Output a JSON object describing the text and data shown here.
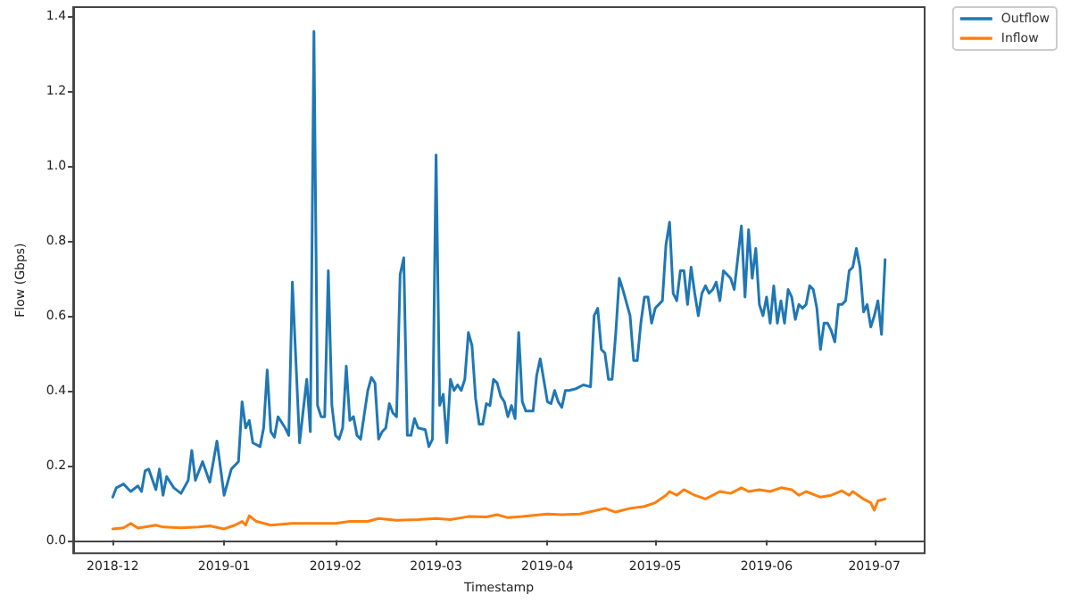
{
  "chart_data": {
    "type": "line",
    "xlabel": "Timestamp",
    "ylabel": "Flow (Gbps)",
    "legend": "top right",
    "line_style": "solid",
    "xlim": [
      "2018-11-20",
      "2019-07-15"
    ],
    "xticks": [
      {
        "value": "2018-12",
        "label": "2018-12"
      },
      {
        "value": "2019-01",
        "label": "2019-01"
      },
      {
        "value": "2019-02",
        "label": "2019-02"
      },
      {
        "value": "2019-03",
        "label": "2019-03"
      },
      {
        "value": "2019-04",
        "label": "2019-04"
      },
      {
        "value": "2019-05",
        "label": "2019-05"
      },
      {
        "value": "2019-06",
        "label": "2019-06"
      },
      {
        "value": "2019-07",
        "label": "2019-07"
      }
    ],
    "ylim": [
      -0.035,
      1.425
    ],
    "yticks": [
      {
        "value": 0,
        "label": "0.0"
      },
      {
        "value": 0.2,
        "label": "0.2"
      },
      {
        "value": 0.4,
        "label": "0.4"
      },
      {
        "value": 0.6,
        "label": "0.6"
      },
      {
        "value": 0.8,
        "label": "0.8"
      },
      {
        "value": 1,
        "label": "1.0"
      },
      {
        "value": 1.2,
        "label": "1.2"
      },
      {
        "value": 1.4,
        "label": "1.4"
      }
    ],
    "series": [
      {
        "name": "Outflow",
        "color": "#1f77b4",
        "x": [
          "2018-12-01",
          "2018-12-02",
          "2018-12-04",
          "2018-12-06",
          "2018-12-08",
          "2018-12-09",
          "2018-12-10",
          "2018-12-11",
          "2018-12-13",
          "2018-12-14",
          "2018-12-15",
          "2018-12-16",
          "2018-12-18",
          "2018-12-20",
          "2018-12-22",
          "2018-12-23",
          "2018-12-24",
          "2018-12-26",
          "2018-12-28",
          "2018-12-30",
          "2019-01-01",
          "2019-01-03",
          "2019-01-05",
          "2019-01-06",
          "2019-01-07",
          "2019-01-08",
          "2019-01-09",
          "2019-01-11",
          "2019-01-12",
          "2019-01-13",
          "2019-01-14",
          "2019-01-15",
          "2019-01-16",
          "2019-01-18",
          "2019-01-19",
          "2019-01-20",
          "2019-01-22",
          "2019-01-24",
          "2019-01-25",
          "2019-01-26",
          "2019-01-27",
          "2019-01-28",
          "2019-01-29",
          "2019-01-30",
          "2019-01-31",
          "2019-02-01",
          "2019-02-02",
          "2019-02-03",
          "2019-02-04",
          "2019-02-05",
          "2019-02-06",
          "2019-02-07",
          "2019-02-08",
          "2019-02-10",
          "2019-02-11",
          "2019-02-12",
          "2019-02-13",
          "2019-02-14",
          "2019-02-15",
          "2019-02-16",
          "2019-02-17",
          "2019-02-18",
          "2019-02-19",
          "2019-02-20",
          "2019-02-21",
          "2019-02-22",
          "2019-02-23",
          "2019-02-24",
          "2019-02-26",
          "2019-02-27",
          "2019-02-28",
          "2019-03-01",
          "2019-03-02",
          "2019-03-03",
          "2019-03-04",
          "2019-03-05",
          "2019-03-06",
          "2019-03-07",
          "2019-03-08",
          "2019-03-09",
          "2019-03-10",
          "2019-03-11",
          "2019-03-12",
          "2019-03-13",
          "2019-03-14",
          "2019-03-15",
          "2019-03-16",
          "2019-03-17",
          "2019-03-18",
          "2019-03-19",
          "2019-03-20",
          "2019-03-21",
          "2019-03-22",
          "2019-03-23",
          "2019-03-24",
          "2019-03-25",
          "2019-03-26",
          "2019-03-28",
          "2019-03-29",
          "2019-03-30",
          "2019-04-01",
          "2019-04-02",
          "2019-04-03",
          "2019-04-04",
          "2019-04-05",
          "2019-04-06",
          "2019-04-07",
          "2019-04-09",
          "2019-04-11",
          "2019-04-13",
          "2019-04-14",
          "2019-04-15",
          "2019-04-16",
          "2019-04-17",
          "2019-04-18",
          "2019-04-19",
          "2019-04-20",
          "2019-04-21",
          "2019-04-22",
          "2019-04-24",
          "2019-04-25",
          "2019-04-26",
          "2019-04-27",
          "2019-04-28",
          "2019-04-29",
          "2019-04-30",
          "2019-05-01",
          "2019-05-02",
          "2019-05-03",
          "2019-05-04",
          "2019-05-05",
          "2019-05-06",
          "2019-05-07",
          "2019-05-08",
          "2019-05-09",
          "2019-05-10",
          "2019-05-11",
          "2019-05-12",
          "2019-05-13",
          "2019-05-14",
          "2019-05-15",
          "2019-05-16",
          "2019-05-17",
          "2019-05-18",
          "2019-05-19",
          "2019-05-20",
          "2019-05-21",
          "2019-05-22",
          "2019-05-23",
          "2019-05-25",
          "2019-05-26",
          "2019-05-27",
          "2019-05-28",
          "2019-05-29",
          "2019-05-30",
          "2019-05-31",
          "2019-06-01",
          "2019-06-02",
          "2019-06-03",
          "2019-06-04",
          "2019-06-05",
          "2019-06-06",
          "2019-06-07",
          "2019-06-08",
          "2019-06-09",
          "2019-06-10",
          "2019-06-11",
          "2019-06-12",
          "2019-06-13",
          "2019-06-14",
          "2019-06-15",
          "2019-06-16",
          "2019-06-17",
          "2019-06-18",
          "2019-06-19",
          "2019-06-20",
          "2019-06-21",
          "2019-06-22",
          "2019-06-23",
          "2019-06-24",
          "2019-06-25",
          "2019-06-26",
          "2019-06-27",
          "2019-06-28",
          "2019-06-29",
          "2019-06-30",
          "2019-07-01",
          "2019-07-02",
          "2019-07-03",
          "2019-07-04"
        ],
        "values": [
          0.115,
          0.14,
          0.15,
          0.13,
          0.145,
          0.13,
          0.185,
          0.19,
          0.135,
          0.19,
          0.12,
          0.17,
          0.14,
          0.125,
          0.16,
          0.24,
          0.16,
          0.21,
          0.155,
          0.265,
          0.12,
          0.19,
          0.21,
          0.37,
          0.3,
          0.32,
          0.26,
          0.25,
          0.3,
          0.455,
          0.29,
          0.275,
          0.33,
          0.3,
          0.28,
          0.69,
          0.26,
          0.43,
          0.29,
          1.36,
          0.36,
          0.33,
          0.33,
          0.72,
          0.36,
          0.28,
          0.27,
          0.3,
          0.465,
          0.32,
          0.33,
          0.28,
          0.27,
          0.4,
          0.435,
          0.42,
          0.27,
          0.29,
          0.3,
          0.365,
          0.34,
          0.33,
          0.71,
          0.755,
          0.28,
          0.28,
          0.325,
          0.3,
          0.295,
          0.25,
          0.27,
          1.03,
          0.36,
          0.39,
          0.26,
          0.43,
          0.4,
          0.415,
          0.4,
          0.43,
          0.555,
          0.52,
          0.38,
          0.31,
          0.31,
          0.365,
          0.36,
          0.43,
          0.42,
          0.385,
          0.37,
          0.33,
          0.36,
          0.325,
          0.555,
          0.37,
          0.345,
          0.345,
          0.44,
          0.485,
          0.37,
          0.365,
          0.4,
          0.37,
          0.355,
          0.4,
          0.4,
          0.405,
          0.415,
          0.41,
          0.6,
          0.62,
          0.51,
          0.5,
          0.43,
          0.43,
          0.55,
          0.7,
          0.67,
          0.6,
          0.48,
          0.48,
          0.58,
          0.65,
          0.65,
          0.58,
          0.62,
          0.63,
          0.64,
          0.79,
          0.85,
          0.66,
          0.64,
          0.72,
          0.72,
          0.63,
          0.73,
          0.66,
          0.6,
          0.66,
          0.68,
          0.66,
          0.67,
          0.69,
          0.64,
          0.72,
          0.71,
          0.7,
          0.67,
          0.84,
          0.65,
          0.83,
          0.7,
          0.78,
          0.63,
          0.6,
          0.65,
          0.58,
          0.68,
          0.58,
          0.64,
          0.58,
          0.67,
          0.65,
          0.59,
          0.63,
          0.62,
          0.63,
          0.68,
          0.67,
          0.62,
          0.51,
          0.58,
          0.58,
          0.56,
          0.53,
          0.63,
          0.63,
          0.64,
          0.72,
          0.73,
          0.78,
          0.73,
          0.61,
          0.63,
          0.57,
          0.6,
          0.64,
          0.55,
          0.75
        ]
      },
      {
        "name": "Inflow",
        "color": "#ff7f0e",
        "x": [
          "2018-12-01",
          "2018-12-04",
          "2018-12-06",
          "2018-12-08",
          "2018-12-10",
          "2018-12-13",
          "2018-12-15",
          "2018-12-20",
          "2018-12-25",
          "2018-12-28",
          "2019-01-01",
          "2019-01-04",
          "2019-01-06",
          "2019-01-07",
          "2019-01-08",
          "2019-01-10",
          "2019-01-14",
          "2019-01-20",
          "2019-01-25",
          "2019-02-01",
          "2019-02-05",
          "2019-02-10",
          "2019-02-13",
          "2019-02-18",
          "2019-02-24",
          "2019-03-01",
          "2019-03-05",
          "2019-03-10",
          "2019-03-15",
          "2019-03-18",
          "2019-03-21",
          "2019-03-25",
          "2019-04-01",
          "2019-04-05",
          "2019-04-10",
          "2019-04-14",
          "2019-04-17",
          "2019-04-20",
          "2019-04-24",
          "2019-04-28",
          "2019-05-01",
          "2019-05-04",
          "2019-05-05",
          "2019-05-07",
          "2019-05-09",
          "2019-05-12",
          "2019-05-15",
          "2019-05-19",
          "2019-05-22",
          "2019-05-25",
          "2019-05-27",
          "2019-05-30",
          "2019-06-02",
          "2019-06-05",
          "2019-06-08",
          "2019-06-10",
          "2019-06-12",
          "2019-06-16",
          "2019-06-19",
          "2019-06-22",
          "2019-06-24",
          "2019-06-25",
          "2019-06-28",
          "2019-06-30",
          "2019-07-01",
          "2019-07-02",
          "2019-07-04"
        ],
        "values": [
          0.03,
          0.033,
          0.045,
          0.032,
          0.035,
          0.04,
          0.035,
          0.033,
          0.035,
          0.038,
          0.03,
          0.04,
          0.05,
          0.04,
          0.065,
          0.05,
          0.04,
          0.045,
          0.045,
          0.045,
          0.05,
          0.05,
          0.058,
          0.053,
          0.055,
          0.058,
          0.055,
          0.063,
          0.062,
          0.068,
          0.06,
          0.063,
          0.07,
          0.068,
          0.07,
          0.078,
          0.085,
          0.075,
          0.085,
          0.09,
          0.1,
          0.12,
          0.13,
          0.12,
          0.135,
          0.12,
          0.11,
          0.13,
          0.125,
          0.14,
          0.13,
          0.135,
          0.13,
          0.14,
          0.135,
          0.12,
          0.13,
          0.115,
          0.12,
          0.132,
          0.12,
          0.13,
          0.11,
          0.1,
          0.08,
          0.105,
          0.11
        ]
      }
    ]
  }
}
